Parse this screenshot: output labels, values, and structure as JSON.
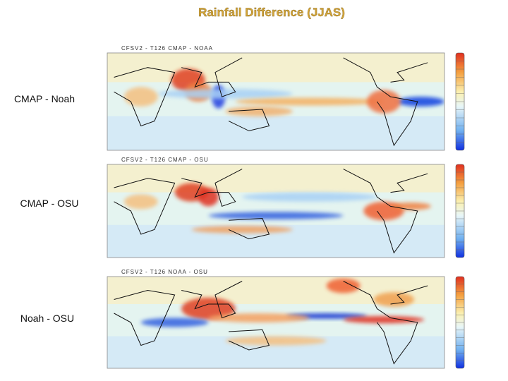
{
  "title": "Rainfall Difference (JJAS)",
  "panels": [
    {
      "label": "CMAP - Noah",
      "map_title": "CFSV2 - T126 CMAP - NOAA"
    },
    {
      "label": "CMAP -  OSU",
      "map_title": "CFSV2 - T126 CMAP - OSU"
    },
    {
      "label": "Noah - OSU",
      "map_title": "CFSV2 - T126 NOAA - OSU"
    }
  ]
}
